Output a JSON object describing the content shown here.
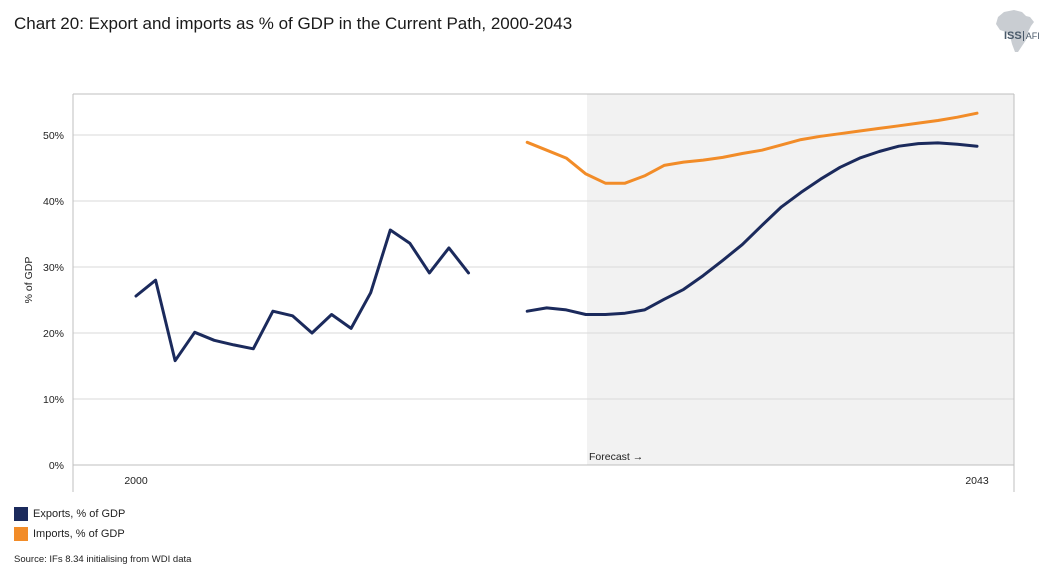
{
  "title": "Chart 20: Export and imports as % of GDP in the Current Path, 2000-2043",
  "logo": {
    "text": "ISS",
    "subtext": "AFI"
  },
  "source": "Source: IFs 8.34 initialising from WDI data",
  "colors": {
    "exports": "#1b2a5c",
    "imports": "#f28c28",
    "forecast_bg": "#f2f2f2"
  },
  "chart_data": {
    "type": "line",
    "ylabel": "% of GDP",
    "ylim": [
      0,
      55
    ],
    "yticks": [
      0,
      10,
      20,
      30,
      40,
      50
    ],
    "ytick_labels": [
      "0%",
      "10%",
      "20%",
      "30%",
      "40%",
      "50%"
    ],
    "xlim": [
      2000,
      2043
    ],
    "xtick_labels": [
      {
        "x": 2000,
        "label": "2000"
      },
      {
        "x": 2043,
        "label": "2043"
      }
    ],
    "forecast_start": 2023,
    "forecast_label": "Forecast →",
    "grid": true,
    "legend_position": "bottom-left",
    "series": [
      {
        "name": "Exports, % of GDP",
        "color": "#1b2a5c",
        "segments": [
          {
            "x": [
              2000,
              2001,
              2002,
              2003,
              2004,
              2005,
              2006,
              2007,
              2008,
              2009,
              2010,
              2011,
              2012,
              2013,
              2014,
              2015,
              2016,
              2017
            ],
            "y": [
              25.6,
              28.0,
              15.8,
              20.1,
              18.9,
              18.2,
              17.6,
              23.3,
              22.6,
              20.0,
              22.8,
              20.7,
              26.1,
              35.6,
              33.6,
              29.1,
              32.9,
              29.1
            ]
          },
          {
            "x": [
              2020,
              2021,
              2022,
              2023,
              2024,
              2025,
              2026,
              2027,
              2028,
              2029,
              2030,
              2031,
              2032,
              2033,
              2034,
              2035,
              2036,
              2037,
              2038,
              2039,
              2040,
              2041,
              2042,
              2043
            ],
            "y": [
              23.3,
              23.8,
              23.5,
              22.8,
              22.8,
              23.0,
              23.5,
              25.1,
              26.6,
              28.7,
              31.0,
              33.4,
              36.3,
              39.1,
              41.3,
              43.3,
              45.1,
              46.5,
              47.5,
              48.3,
              48.7,
              48.8,
              48.6,
              48.3
            ]
          }
        ]
      },
      {
        "name": "Imports, % of GDP",
        "color": "#f28c28",
        "segments": [
          {
            "x": [
              2020,
              2021,
              2022,
              2023,
              2024,
              2025,
              2026,
              2027,
              2028,
              2029,
              2030,
              2031,
              2032,
              2033,
              2034,
              2035,
              2036,
              2037,
              2038,
              2039,
              2040,
              2041,
              2042,
              2043
            ],
            "y": [
              48.9,
              47.7,
              46.5,
              44.1,
              42.7,
              42.7,
              43.8,
              45.4,
              45.9,
              46.2,
              46.6,
              47.2,
              47.7,
              48.5,
              49.3,
              49.8,
              50.2,
              50.6,
              51.0,
              51.4,
              51.8,
              52.2,
              52.7,
              53.3
            ]
          }
        ]
      }
    ]
  }
}
